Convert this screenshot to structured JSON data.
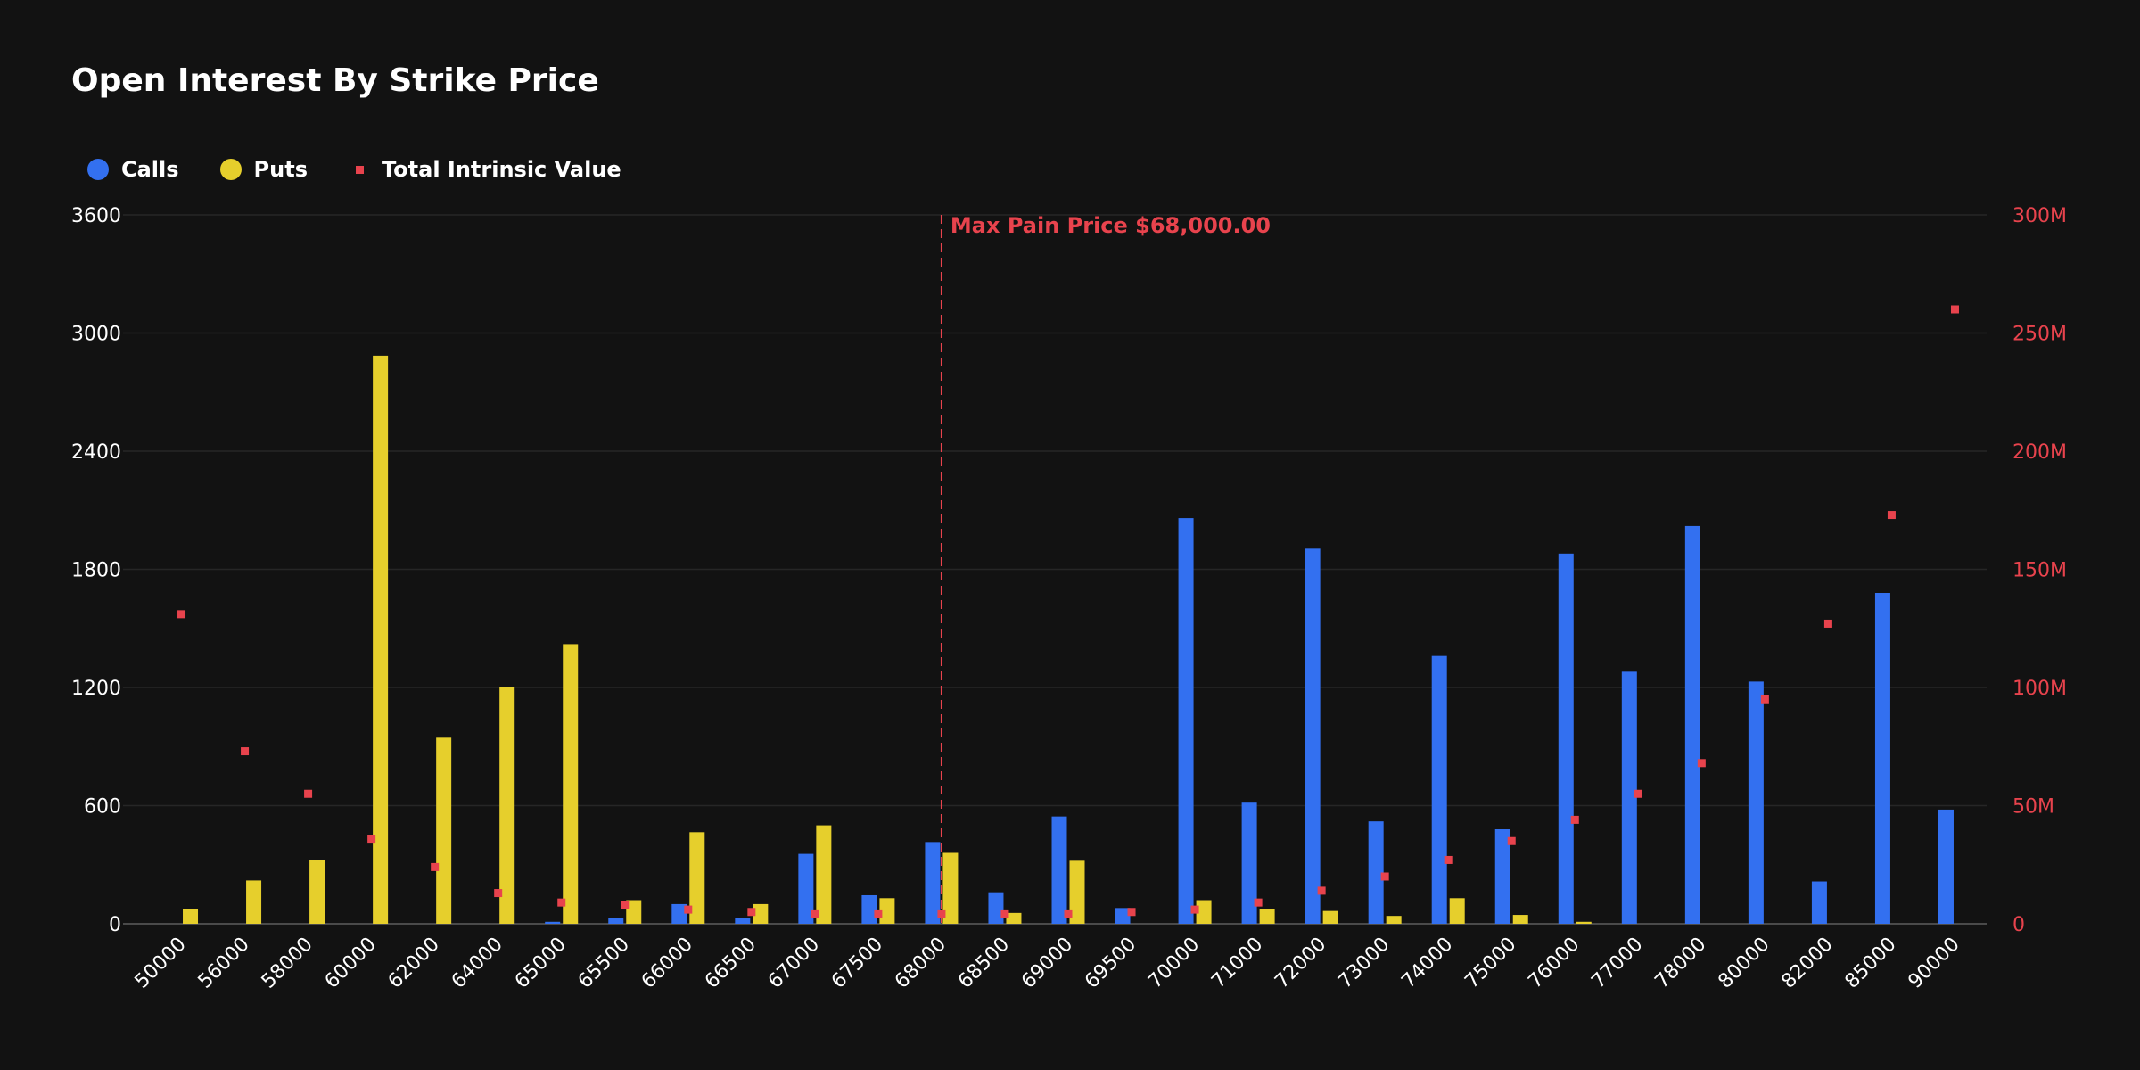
{
  "colors": {
    "background": "#121212",
    "calls": "#3370f0",
    "puts": "#e6cf2c",
    "intrinsic": "#e8434d",
    "grid": "#262626",
    "axis_text": "#ffffff",
    "right_axis_text": "#e8434d"
  },
  "chart_data": {
    "type": "bar",
    "title": "Open Interest By Strike Price",
    "legend_position": "top-left",
    "grid": true,
    "categories": [
      "50000",
      "56000",
      "58000",
      "60000",
      "62000",
      "64000",
      "65000",
      "65500",
      "66000",
      "66500",
      "67000",
      "67500",
      "68000",
      "68500",
      "69000",
      "69500",
      "70000",
      "71000",
      "72000",
      "73000",
      "74000",
      "75000",
      "76000",
      "77000",
      "78000",
      "80000",
      "82000",
      "85000",
      "90000"
    ],
    "series": [
      {
        "name": "Calls",
        "type": "bar",
        "axis": "left",
        "values": [
          0,
          0,
          0,
          0,
          0,
          0,
          10,
          30,
          100,
          30,
          355,
          145,
          415,
          160,
          545,
          80,
          2060,
          615,
          1905,
          520,
          1360,
          480,
          1880,
          1280,
          2020,
          1230,
          215,
          1680,
          580
        ]
      },
      {
        "name": "Puts",
        "type": "bar",
        "axis": "left",
        "values": [
          75,
          220,
          325,
          2885,
          945,
          1200,
          1420,
          120,
          465,
          100,
          500,
          130,
          360,
          55,
          320,
          0,
          120,
          75,
          65,
          40,
          130,
          45,
          10,
          0,
          0,
          0,
          0,
          0,
          0
        ]
      },
      {
        "name": "Total Intrinsic Value",
        "type": "scatter",
        "axis": "right",
        "values": [
          131,
          73,
          55,
          36,
          24,
          13,
          9,
          8,
          6,
          5,
          4,
          4,
          4,
          4,
          4,
          5,
          6,
          9,
          14,
          20,
          27,
          35,
          44,
          55,
          68,
          95,
          127,
          173,
          260
        ]
      }
    ],
    "y_left": {
      "min": 0,
      "max": 3600,
      "ticks": [
        "0",
        "600",
        "1200",
        "1800",
        "2400",
        "3000",
        "3600"
      ]
    },
    "y_right": {
      "min": 0,
      "max": 300,
      "ticks": [
        "0",
        "50M",
        "100M",
        "150M",
        "200M",
        "250M",
        "300M"
      ]
    },
    "annotation": {
      "category": "68000",
      "label": "Max Pain Price $68,000.00"
    }
  }
}
